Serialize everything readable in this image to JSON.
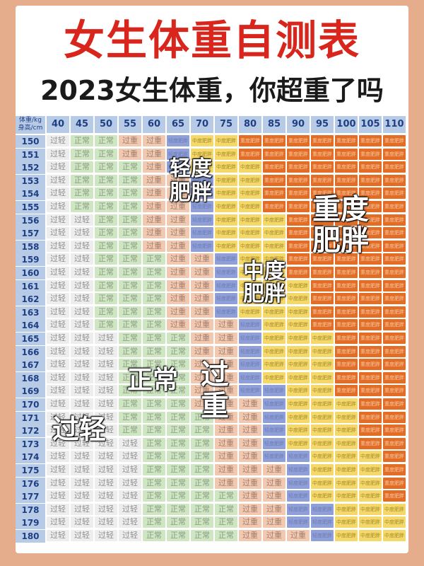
{
  "title": "女生体重自测表",
  "subtitle": "2023女生体重，你超重了吗",
  "corner": {
    "weight": "体重/kg",
    "height": "身高/cm"
  },
  "weights": [
    "40",
    "45",
    "50",
    "55",
    "60",
    "65",
    "70",
    "75",
    "80",
    "85",
    "90",
    "95",
    "100",
    "105",
    "110"
  ],
  "heights": [
    "150",
    "151",
    "152",
    "153",
    "154",
    "155",
    "156",
    "157",
    "158",
    "159",
    "160",
    "161",
    "162",
    "163",
    "164",
    "165",
    "166",
    "167",
    "168",
    "169",
    "170",
    "171",
    "172",
    "173",
    "174",
    "175",
    "176",
    "177",
    "178",
    "179",
    "180"
  ],
  "categories": [
    "过轻",
    "正常",
    "过重",
    "轻度肥胖",
    "中度肥胖",
    "重度肥胖"
  ],
  "category_colors": [
    "#ecedec",
    "#cfe6c3",
    "#f1c9b1",
    "#8f9fd8",
    "#f5d86a",
    "#e36d24"
  ],
  "category_text_colors": [
    "#8e8e8e",
    "#8a9a80",
    "#a17d6a",
    "#6e7bb2",
    "#a48a2a",
    "#f5c9a8"
  ],
  "thresholds": [
    18.5,
    24,
    28,
    30,
    35
  ],
  "cell_labels": [
    "过轻",
    "正常",
    "过重",
    "轻度肥胖",
    "中度肥胖",
    "重度肥胖"
  ],
  "labels": {
    "mild": "轻度\n肥胖",
    "severe": "重度\n肥胖",
    "moderate": "中度\n肥胖",
    "normal": "正常",
    "overweight": "过\n重",
    "light": "过轻"
  }
}
